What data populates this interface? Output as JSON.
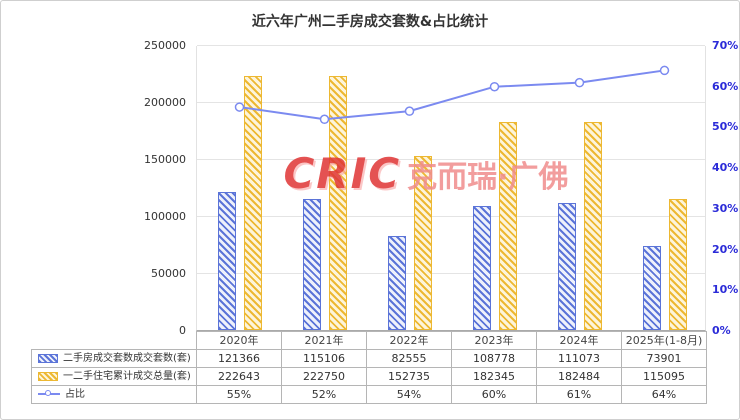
{
  "title": "近六年广州二手房成交套数&占比统计",
  "watermark": {
    "logo": "CRIC",
    "text": "克而瑞·广佛"
  },
  "chart_data": {
    "type": "bar+line",
    "categories": [
      "2020年",
      "2021年",
      "2022年",
      "2023年",
      "2024年",
      "2025年(1-8月)"
    ],
    "series": [
      {
        "id": "secondhand",
        "name": "二手房成交套数成交套数(套)",
        "type": "bar",
        "axis": "left",
        "color": "#5b74d8",
        "fill": "#eef1fb",
        "values": [
          121366,
          115106,
          82555,
          108778,
          111073,
          73901
        ]
      },
      {
        "id": "total",
        "name": "一二手住宅累计成交总量(套)",
        "type": "bar",
        "axis": "left",
        "color": "#edb832",
        "fill": "#fdf4da",
        "values": [
          222643,
          222750,
          152735,
          182345,
          182484,
          115095
        ]
      },
      {
        "id": "ratio",
        "name": "占比",
        "type": "line",
        "axis": "right",
        "color": "#7b8af0",
        "values": [
          55,
          52,
          54,
          60,
          61,
          64
        ],
        "unit": "%"
      }
    ],
    "left_axis": {
      "min": 0,
      "max": 250000,
      "step": 50000,
      "ticks": [
        "0",
        "50000",
        "100000",
        "150000",
        "200000",
        "250000"
      ]
    },
    "right_axis": {
      "min": 0,
      "max": 70,
      "step": 10,
      "ticks": [
        "0%",
        "10%",
        "20%",
        "30%",
        "40%",
        "50%",
        "60%",
        "70%"
      ],
      "label_color": "#2b2bd8"
    },
    "legend_position": "table-left",
    "grid": true
  }
}
